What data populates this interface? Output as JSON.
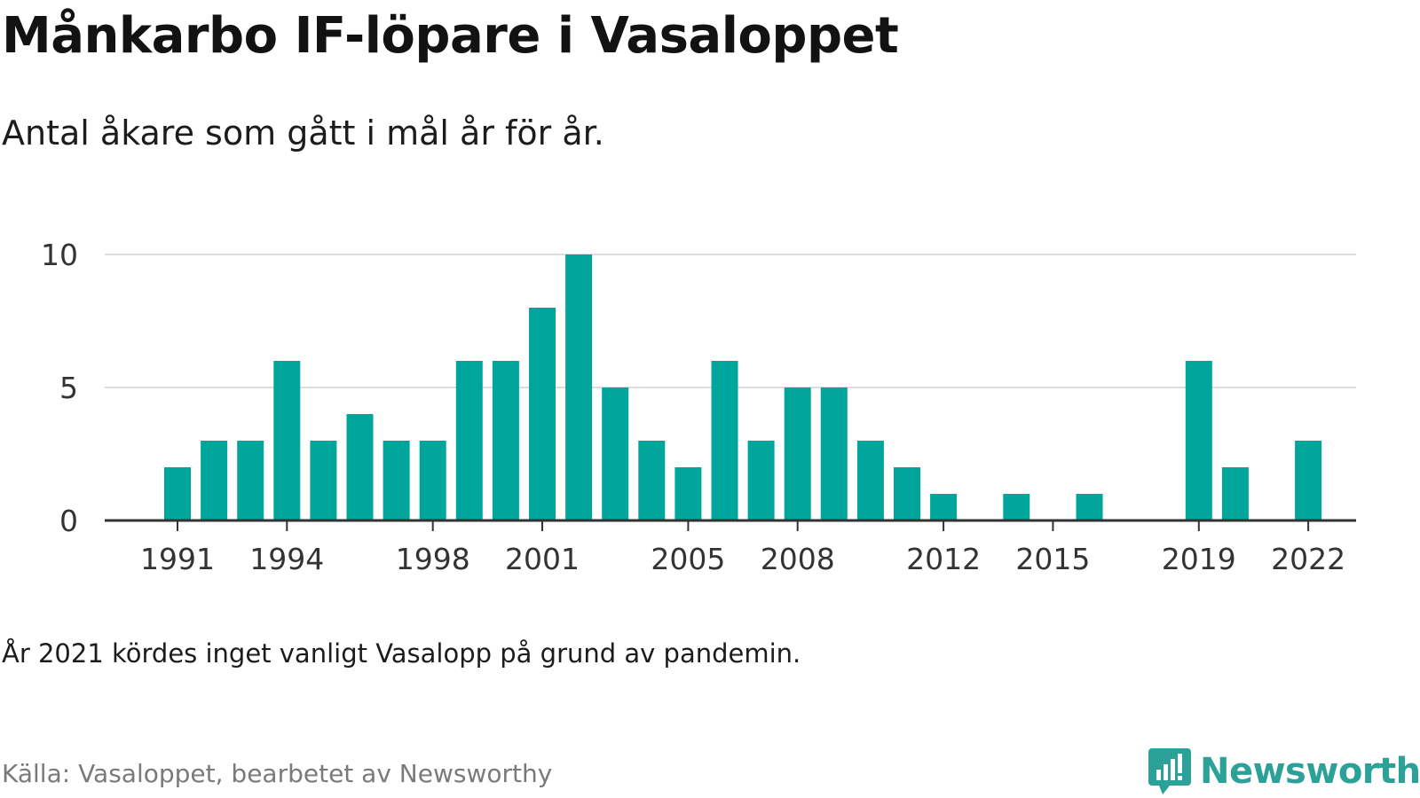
{
  "header": {
    "title": "Månkarbo IF-löpare i Vasaloppet",
    "subtitle": "Antal åkare som gått i mål år för år."
  },
  "footer": {
    "note": "År 2021 kördes inget vanligt Vasalopp på grund av pandemin.",
    "source": "Källa: Vasaloppet, bearbetet av Newsworthy",
    "brand": "Newsworthy"
  },
  "colors": {
    "bar": "#00A59B",
    "grid": "#dddddd",
    "axis": "#333333",
    "brand": "#2ba198"
  },
  "chart_data": {
    "type": "bar",
    "x": [
      1991,
      1992,
      1993,
      1994,
      1995,
      1996,
      1997,
      1998,
      1999,
      2000,
      2001,
      2002,
      2003,
      2004,
      2005,
      2006,
      2007,
      2008,
      2009,
      2010,
      2011,
      2012,
      2013,
      2014,
      2015,
      2016,
      2017,
      2018,
      2019,
      2020,
      2021,
      2022
    ],
    "values": [
      2,
      3,
      3,
      6,
      3,
      4,
      3,
      3,
      6,
      6,
      8,
      10,
      5,
      3,
      2,
      6,
      3,
      5,
      5,
      3,
      2,
      1,
      0,
      1,
      0,
      1,
      0,
      0,
      6,
      2,
      0,
      3
    ],
    "x_tick_labels": [
      "1991",
      "1994",
      "1998",
      "2001",
      "2005",
      "2008",
      "2012",
      "2015",
      "2019",
      "2022"
    ],
    "y_ticks": [
      0,
      5,
      10
    ],
    "ylim": [
      0,
      10
    ],
    "grid": true
  }
}
